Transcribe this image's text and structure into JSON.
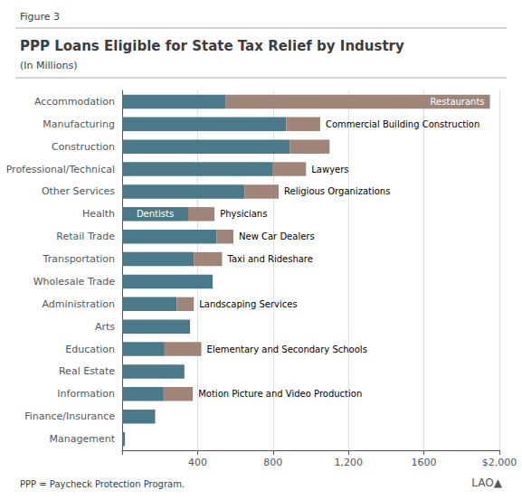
{
  "chart_data": {
    "type": "bar",
    "orientation": "horizontal",
    "stacked": true,
    "figure_label": "Figure 3",
    "title": "PPP Loans Eligible for State Tax Relief by Industry",
    "subtitle": "(In Millions)",
    "footnote": "PPP = Paycheck Protection Program.",
    "logo": "LAO▲",
    "categories": [
      "Accommodation",
      "Manufacturing",
      "Construction",
      "Professional/Technical",
      "Other Services",
      "Health",
      "Retail Trade",
      "Transportation",
      "Wholesale Trade",
      "Administration",
      "Arts",
      "Education",
      "Real Estate",
      "Information",
      "Finance/Insurance",
      "Management"
    ],
    "series": [
      {
        "color": "#4a7a8a",
        "values": [
          550,
          870,
          890,
          800,
          650,
          350,
          500,
          380,
          480,
          290,
          360,
          225,
          330,
          220,
          175,
          15
        ],
        "labels": [
          null,
          null,
          null,
          null,
          null,
          "Dentists",
          null,
          null,
          null,
          null,
          null,
          null,
          null,
          null,
          null,
          null
        ]
      },
      {
        "color": "#a08478",
        "values": [
          1400,
          180,
          210,
          175,
          180,
          140,
          90,
          150,
          0,
          90,
          0,
          195,
          0,
          155,
          0,
          0
        ],
        "labels": [
          "Restaurants",
          "Commercial Building Construction",
          null,
          "Lawyers",
          "Religious Organizations",
          "Physicians",
          "New Car Dealers",
          "Taxi and Rideshare",
          null,
          "Landscaping Services",
          null,
          "Elementary and Secondary Schools",
          null,
          "Motion Picture and Video Production",
          null,
          null
        ]
      }
    ],
    "xlim": [
      0,
      2000
    ],
    "xticks": [
      {
        "value": 0,
        "label": ""
      },
      400,
      800,
      {
        "value": 1200,
        "label": "1,200"
      },
      1600,
      {
        "value": 2000,
        "label": "$2,000"
      }
    ],
    "grid": true
  }
}
